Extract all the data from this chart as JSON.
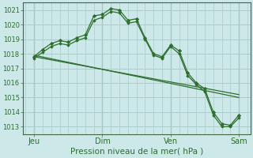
{
  "background_color": "#cce8e8",
  "grid_color": "#aacccc",
  "line_color": "#2d6e2d",
  "marker_color": "#2d6e2d",
  "xlabel": "Pression niveau de la mer( hPa )",
  "ylim": [
    1012.5,
    1021.5
  ],
  "yticks": [
    1013,
    1014,
    1015,
    1016,
    1017,
    1018,
    1019,
    1020,
    1021
  ],
  "day_positions": [
    0,
    24,
    48,
    72
  ],
  "day_labels": [
    "Jeu",
    "Dim",
    "Ven",
    "Sam"
  ],
  "xmin": -4,
  "xmax": 76,
  "series1_x": [
    0,
    3,
    6,
    9,
    12,
    15,
    18,
    21,
    24,
    27,
    30,
    33,
    36,
    39,
    42,
    45,
    48,
    51,
    54,
    57,
    60,
    63,
    66,
    69,
    72
  ],
  "series1_y": [
    1017.8,
    1018.3,
    1018.7,
    1018.9,
    1018.8,
    1019.1,
    1019.3,
    1020.6,
    1020.7,
    1021.1,
    1021.0,
    1020.3,
    1020.4,
    1019.1,
    1018.0,
    1017.8,
    1018.6,
    1018.2,
    1016.7,
    1016.0,
    1015.6,
    1014.0,
    1013.2,
    1013.1,
    1013.8
  ],
  "series2_x": [
    0,
    3,
    6,
    9,
    12,
    15,
    18,
    21,
    24,
    27,
    30,
    33,
    36,
    39,
    42,
    45,
    48,
    51,
    54,
    57,
    60,
    63,
    66,
    69,
    72
  ],
  "series2_y": [
    1017.7,
    1018.1,
    1018.5,
    1018.7,
    1018.6,
    1018.9,
    1019.1,
    1020.3,
    1020.5,
    1020.9,
    1020.8,
    1020.1,
    1020.2,
    1019.0,
    1017.9,
    1017.7,
    1018.5,
    1018.0,
    1016.5,
    1015.9,
    1015.4,
    1013.8,
    1013.0,
    1013.0,
    1013.6
  ],
  "trend_x": [
    0,
    72
  ],
  "trend_y": [
    1017.9,
    1015.0
  ],
  "trend2_x": [
    0,
    72
  ],
  "trend2_y": [
    1017.8,
    1015.2
  ]
}
